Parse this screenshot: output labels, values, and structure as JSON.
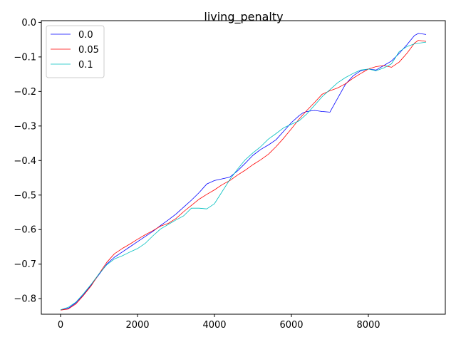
{
  "chart_data": {
    "type": "line",
    "title": "living_penalty",
    "xlabel": "",
    "ylabel": "",
    "xlim": [
      -500,
      10000
    ],
    "ylim": [
      -0.845,
      0.005
    ],
    "xticks": [
      0,
      2000,
      4000,
      6000,
      8000
    ],
    "yticks": [
      0.0,
      -0.1,
      -0.2,
      -0.3,
      -0.4,
      -0.5,
      -0.6,
      -0.7,
      -0.8
    ],
    "xtick_labels": [
      "0",
      "2000",
      "4000",
      "6000",
      "8000"
    ],
    "ytick_labels": [
      "0.0",
      "−0.1",
      "−0.2",
      "−0.3",
      "−0.4",
      "−0.5",
      "−0.6",
      "−0.7",
      "−0.8"
    ],
    "grid": false,
    "legend_position": "top-left",
    "series": [
      {
        "name": "0.0",
        "color": "#0000ff",
        "x": [
          0,
          200,
          400,
          600,
          800,
          1000,
          1200,
          1400,
          1600,
          1800,
          2000,
          2200,
          2400,
          2600,
          2800,
          3000,
          3200,
          3400,
          3600,
          3800,
          4000,
          4200,
          4400,
          4600,
          4800,
          5000,
          5200,
          5400,
          5600,
          5800,
          6000,
          6200,
          6300,
          6400,
          6600,
          6800,
          7000,
          7200,
          7400,
          7600,
          7800,
          8000,
          8200,
          8400,
          8600,
          8800,
          9000,
          9200,
          9300,
          9500
        ],
        "y": [
          -0.833,
          -0.828,
          -0.812,
          -0.788,
          -0.76,
          -0.73,
          -0.7,
          -0.68,
          -0.665,
          -0.65,
          -0.635,
          -0.62,
          -0.605,
          -0.588,
          -0.572,
          -0.555,
          -0.535,
          -0.515,
          -0.493,
          -0.468,
          -0.458,
          -0.453,
          -0.448,
          -0.43,
          -0.408,
          -0.385,
          -0.368,
          -0.355,
          -0.34,
          -0.315,
          -0.29,
          -0.27,
          -0.262,
          -0.258,
          -0.255,
          -0.258,
          -0.26,
          -0.22,
          -0.18,
          -0.155,
          -0.14,
          -0.135,
          -0.138,
          -0.125,
          -0.112,
          -0.09,
          -0.065,
          -0.038,
          -0.032,
          -0.035
        ]
      },
      {
        "name": "0.05",
        "color": "#ff0000",
        "x": [
          0,
          200,
          400,
          600,
          800,
          1000,
          1200,
          1400,
          1600,
          1800,
          2000,
          2200,
          2400,
          2600,
          2800,
          3000,
          3200,
          3400,
          3600,
          3800,
          4000,
          4200,
          4400,
          4600,
          4800,
          5000,
          5200,
          5400,
          5600,
          5800,
          6000,
          6200,
          6400,
          6600,
          6800,
          7000,
          7200,
          7400,
          7600,
          7800,
          8000,
          8200,
          8400,
          8600,
          8800,
          9000,
          9200,
          9300,
          9500
        ],
        "y": [
          -0.833,
          -0.83,
          -0.815,
          -0.79,
          -0.762,
          -0.728,
          -0.695,
          -0.67,
          -0.655,
          -0.642,
          -0.628,
          -0.615,
          -0.603,
          -0.59,
          -0.582,
          -0.568,
          -0.548,
          -0.53,
          -0.512,
          -0.498,
          -0.485,
          -0.47,
          -0.458,
          -0.442,
          -0.428,
          -0.412,
          -0.398,
          -0.382,
          -0.36,
          -0.335,
          -0.308,
          -0.28,
          -0.255,
          -0.232,
          -0.208,
          -0.198,
          -0.19,
          -0.178,
          -0.162,
          -0.148,
          -0.135,
          -0.128,
          -0.125,
          -0.13,
          -0.115,
          -0.09,
          -0.06,
          -0.052,
          -0.055
        ]
      },
      {
        "name": "0.1",
        "color": "#00bfbf",
        "x": [
          0,
          200,
          400,
          600,
          800,
          1000,
          1200,
          1400,
          1600,
          1800,
          2000,
          2200,
          2400,
          2600,
          2800,
          3000,
          3200,
          3400,
          3600,
          3800,
          4000,
          4200,
          4400,
          4600,
          4800,
          5000,
          5200,
          5400,
          5600,
          5800,
          6000,
          6200,
          6400,
          6600,
          6800,
          7000,
          7200,
          7400,
          7600,
          7800,
          8000,
          8200,
          8400,
          8600,
          8800,
          9000,
          9200,
          9500
        ],
        "y": [
          -0.832,
          -0.825,
          -0.81,
          -0.785,
          -0.758,
          -0.728,
          -0.702,
          -0.685,
          -0.676,
          -0.665,
          -0.655,
          -0.64,
          -0.618,
          -0.598,
          -0.585,
          -0.572,
          -0.56,
          -0.538,
          -0.538,
          -0.54,
          -0.525,
          -0.49,
          -0.455,
          -0.425,
          -0.398,
          -0.378,
          -0.36,
          -0.338,
          -0.322,
          -0.305,
          -0.295,
          -0.285,
          -0.265,
          -0.24,
          -0.215,
          -0.195,
          -0.175,
          -0.16,
          -0.148,
          -0.138,
          -0.135,
          -0.14,
          -0.132,
          -0.12,
          -0.085,
          -0.07,
          -0.062,
          -0.057
        ]
      }
    ]
  }
}
